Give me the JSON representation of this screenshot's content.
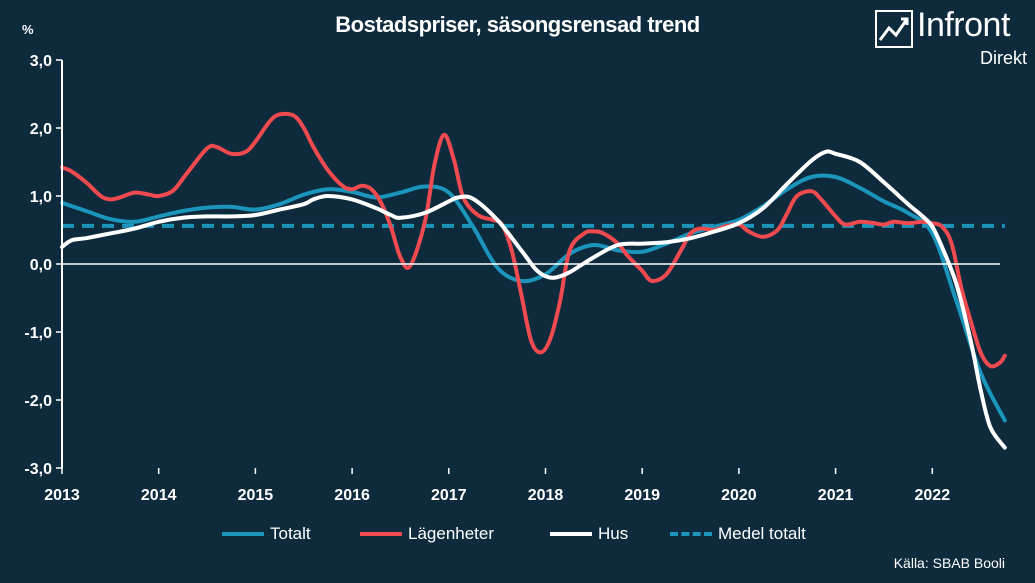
{
  "title": "Bostadspriser, säsongsrensad trend",
  "unit": "%",
  "logo": {
    "word": "Infront",
    "sub": "Direkt"
  },
  "source": "Källa:  SBAB Booli",
  "colors": {
    "background": "#0d2b3d",
    "totalt": "#1b95bb",
    "lagenheter": "#ef4a4f",
    "hus": "#ffffff",
    "medel": "#1b95bb"
  },
  "chart_data": {
    "type": "line",
    "title": "Bostadspriser, säsongsrensad trend",
    "ylabel": "%",
    "xlabel": "",
    "ylim": [
      -3.0,
      3.0
    ],
    "xlim": [
      2013.0,
      2022.75
    ],
    "yticks": [
      "3,0",
      "2,0",
      "1,0",
      "0,0",
      "-1,0",
      "-2,0",
      "-3,0"
    ],
    "xticks": [
      "2013",
      "2014",
      "2015",
      "2016",
      "2017",
      "2018",
      "2019",
      "2020",
      "2021",
      "2022"
    ],
    "legend": [
      "Totalt",
      "Lägenheter",
      "Hus",
      "Medel totalt"
    ],
    "legend_position": "bottom",
    "series": [
      {
        "name": "Totalt",
        "color": "#1b95bb",
        "style": "solid",
        "x": [
          2013.0,
          2013.25,
          2013.5,
          2013.75,
          2014.0,
          2014.25,
          2014.5,
          2014.75,
          2015.0,
          2015.25,
          2015.5,
          2015.75,
          2016.0,
          2016.25,
          2016.5,
          2016.75,
          2017.0,
          2017.25,
          2017.5,
          2017.75,
          2018.0,
          2018.25,
          2018.5,
          2018.75,
          2019.0,
          2019.25,
          2019.5,
          2019.75,
          2020.0,
          2020.25,
          2020.5,
          2020.75,
          2021.0,
          2021.25,
          2021.5,
          2021.75,
          2022.0,
          2022.25,
          2022.5,
          2022.75
        ],
        "y": [
          0.9,
          0.78,
          0.66,
          0.62,
          0.7,
          0.78,
          0.83,
          0.84,
          0.8,
          0.88,
          1.02,
          1.1,
          1.06,
          0.98,
          1.05,
          1.14,
          1.05,
          0.55,
          -0.05,
          -0.25,
          -0.15,
          0.15,
          0.28,
          0.2,
          0.18,
          0.3,
          0.45,
          0.55,
          0.65,
          0.85,
          1.1,
          1.28,
          1.28,
          1.12,
          0.92,
          0.75,
          0.45,
          -0.55,
          -1.6,
          -2.3
        ]
      },
      {
        "name": "Lägenheter",
        "color": "#ef4a4f",
        "style": "solid",
        "x": [
          2013.0,
          2013.1,
          2013.25,
          2013.4,
          2013.5,
          2013.6,
          2013.75,
          2013.9,
          2014.0,
          2014.15,
          2014.3,
          2014.5,
          2014.6,
          2014.75,
          2014.9,
          2015.0,
          2015.15,
          2015.25,
          2015.4,
          2015.5,
          2015.6,
          2015.75,
          2015.9,
          2016.0,
          2016.1,
          2016.2,
          2016.3,
          2016.4,
          2016.5,
          2016.6,
          2016.75,
          2016.85,
          2016.95,
          2017.05,
          2017.15,
          2017.3,
          2017.45,
          2017.55,
          2017.65,
          2017.75,
          2017.85,
          2017.95,
          2018.05,
          2018.15,
          2018.25,
          2018.4,
          2018.5,
          2018.6,
          2018.75,
          2018.85,
          2019.0,
          2019.1,
          2019.25,
          2019.4,
          2019.5,
          2019.6,
          2019.75,
          2019.85,
          2020.0,
          2020.1,
          2020.25,
          2020.4,
          2020.5,
          2020.6,
          2020.75,
          2020.85,
          2021.0,
          2021.1,
          2021.25,
          2021.4,
          2021.5,
          2021.6,
          2021.75,
          2021.9,
          2022.0,
          2022.1,
          2022.2,
          2022.3,
          2022.4,
          2022.5,
          2022.6,
          2022.7,
          2022.75
        ],
        "y": [
          1.42,
          1.36,
          1.2,
          1.0,
          0.95,
          0.98,
          1.05,
          1.02,
          1.0,
          1.08,
          1.35,
          1.7,
          1.72,
          1.62,
          1.65,
          1.8,
          2.1,
          2.2,
          2.18,
          2.0,
          1.72,
          1.38,
          1.15,
          1.1,
          1.15,
          1.1,
          0.9,
          0.55,
          0.1,
          -0.03,
          0.6,
          1.45,
          1.9,
          1.55,
          0.98,
          0.72,
          0.65,
          0.58,
          0.2,
          -0.45,
          -1.12,
          -1.3,
          -1.1,
          -0.55,
          0.2,
          0.45,
          0.48,
          0.45,
          0.3,
          0.12,
          -0.1,
          -0.25,
          -0.15,
          0.2,
          0.45,
          0.52,
          0.5,
          0.55,
          0.58,
          0.48,
          0.4,
          0.5,
          0.75,
          1.0,
          1.07,
          0.95,
          0.7,
          0.58,
          0.62,
          0.6,
          0.58,
          0.62,
          0.6,
          0.62,
          0.6,
          0.55,
          0.3,
          -0.35,
          -0.85,
          -1.3,
          -1.5,
          -1.45,
          -1.35
        ]
      },
      {
        "name": "Hus",
        "color": "#ffffff",
        "style": "solid",
        "x": [
          2013.0,
          2013.1,
          2013.25,
          2013.5,
          2013.75,
          2014.0,
          2014.25,
          2014.5,
          2014.75,
          2015.0,
          2015.25,
          2015.5,
          2015.6,
          2015.75,
          2016.0,
          2016.25,
          2016.4,
          2016.5,
          2016.75,
          2017.0,
          2017.1,
          2017.25,
          2017.5,
          2017.75,
          2017.9,
          2018.0,
          2018.1,
          2018.25,
          2018.5,
          2018.75,
          2019.0,
          2019.25,
          2019.5,
          2019.75,
          2020.0,
          2020.25,
          2020.5,
          2020.75,
          2020.9,
          2021.0,
          2021.25,
          2021.5,
          2021.75,
          2021.9,
          2022.0,
          2022.1,
          2022.25,
          2022.4,
          2022.5,
          2022.6,
          2022.75
        ],
        "y": [
          0.25,
          0.35,
          0.38,
          0.45,
          0.52,
          0.62,
          0.68,
          0.7,
          0.7,
          0.72,
          0.8,
          0.88,
          0.95,
          1.0,
          0.95,
          0.82,
          0.72,
          0.68,
          0.75,
          0.92,
          0.98,
          0.96,
          0.65,
          0.2,
          -0.08,
          -0.18,
          -0.2,
          -0.12,
          0.1,
          0.28,
          0.3,
          0.32,
          0.38,
          0.48,
          0.6,
          0.82,
          1.18,
          1.52,
          1.65,
          1.62,
          1.5,
          1.2,
          0.88,
          0.7,
          0.55,
          0.25,
          -0.3,
          -1.15,
          -1.85,
          -2.4,
          -2.7
        ]
      },
      {
        "name": "Medel totalt",
        "color": "#1b95bb",
        "style": "dashed",
        "x": [
          2013.0,
          2022.75
        ],
        "y": [
          0.56,
          0.56
        ]
      }
    ]
  }
}
